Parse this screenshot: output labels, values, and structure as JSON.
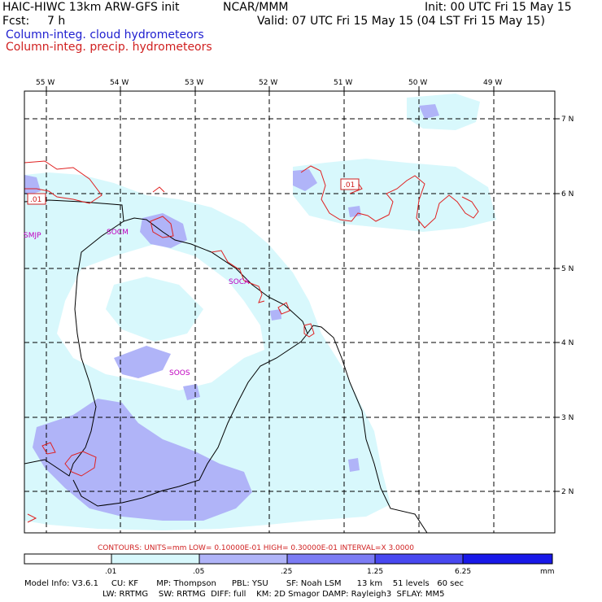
{
  "header": {
    "model_title": "HAIC-HIWC 13km ARW-GFS init",
    "org": "NCAR/MMM",
    "init": "Init: 00 UTC Fri 15 May 15",
    "fcst_label": "Fcst:",
    "fcst_value": "7 h",
    "valid": "Valid: 07 UTC Fri 15 May 15 (04 LST Fri 15 May 15)",
    "field1": "Column-integ. cloud hydrometeors",
    "field2": "Column-integ. precip. hydrometeors"
  },
  "axes": {
    "lon_labels": [
      "55 W",
      "54 W",
      "53 W",
      "52 W",
      "51 W",
      "50 W",
      "49 W"
    ],
    "lat_labels": [
      "7 N",
      "6 N",
      "5 N",
      "4 N",
      "3 N",
      "2 N"
    ]
  },
  "stations": [
    "SMJP",
    "SOCM",
    "SOCA",
    "SOOS"
  ],
  "contour_labels": [
    ".01",
    ".01"
  ],
  "contour_note": "CONTOURS:  UNITS=mm  LOW= 0.10000E-01  HIGH= 0.30000E-01  INTERVAL=X  3.0000",
  "colorbar": {
    "tick_labels": [
      ".01",
      ".05",
      ".25",
      "1.25",
      "6.25"
    ],
    "units": "mm",
    "colors": [
      "#ffffff",
      "#d8f8fc",
      "#b0b4f8",
      "#7c7cf4",
      "#4848f0",
      "#1818e8"
    ]
  },
  "footer": {
    "line1": "Model Info: V3.6.1     CU: KF       MP: Thompson      PBL: YSU       SF: Noah LSM      13 km    51 levels   60 sec",
    "line2": "LW: RRTMG    SW: RRTMG  DIFF: full    KM: 2D Smagor DAMP: Rayleigh3  SFLAY: MM5"
  }
}
